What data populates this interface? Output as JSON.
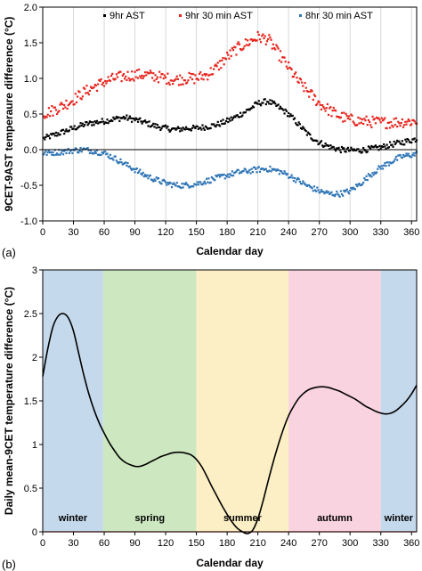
{
  "chart_data": [
    {
      "panel_label": "(a)",
      "type": "scatter",
      "xlabel": "Calendar day",
      "ylabel": "9CET-9AST temperaure difference (°C)",
      "xlim": [
        0,
        365
      ],
      "ylim": [
        -1.0,
        2.0
      ],
      "xticks": [
        0,
        30,
        60,
        90,
        120,
        150,
        180,
        210,
        240,
        270,
        300,
        330,
        360
      ],
      "yticks": [
        -1.0,
        -0.5,
        0.0,
        0.5,
        1.0,
        1.5,
        2.0
      ],
      "ytick_labels": [
        "-1.0",
        "-0.5",
        "0.0",
        "0.5",
        "1.0",
        "1.5",
        "2.0"
      ],
      "grid": "vertical",
      "legend_position": "top",
      "reference_line": 0,
      "series": [
        {
          "name": "9hr AST",
          "color": "#000000",
          "key_days": [
            0,
            10,
            20,
            30,
            40,
            50,
            60,
            70,
            80,
            90,
            100,
            110,
            120,
            130,
            140,
            150,
            160,
            170,
            180,
            190,
            200,
            210,
            220,
            230,
            240,
            250,
            260,
            270,
            280,
            290,
            300,
            310,
            320,
            330,
            340,
            350,
            365
          ],
          "key_values": [
            0.15,
            0.2,
            0.25,
            0.3,
            0.35,
            0.38,
            0.4,
            0.43,
            0.45,
            0.42,
            0.38,
            0.33,
            0.3,
            0.28,
            0.3,
            0.3,
            0.32,
            0.35,
            0.4,
            0.47,
            0.55,
            0.65,
            0.68,
            0.6,
            0.5,
            0.35,
            0.2,
            0.1,
            0.04,
            0.0,
            -0.01,
            -0.01,
            0.01,
            0.03,
            0.07,
            0.1,
            0.15
          ],
          "noise": 0.04
        },
        {
          "name": "9hr 30 min AST",
          "color": "#e8231b",
          "key_days": [
            0,
            10,
            20,
            30,
            40,
            50,
            60,
            70,
            80,
            90,
            100,
            110,
            120,
            130,
            140,
            150,
            160,
            170,
            180,
            190,
            200,
            210,
            220,
            230,
            240,
            250,
            260,
            270,
            280,
            290,
            300,
            310,
            320,
            330,
            340,
            350,
            365
          ],
          "key_values": [
            0.5,
            0.55,
            0.62,
            0.7,
            0.8,
            0.88,
            0.95,
            1.0,
            1.03,
            1.05,
            1.05,
            1.03,
            1.0,
            0.98,
            1.0,
            1.0,
            1.05,
            1.15,
            1.3,
            1.42,
            1.5,
            1.58,
            1.55,
            1.35,
            1.15,
            0.95,
            0.8,
            0.65,
            0.55,
            0.47,
            0.42,
            0.4,
            0.39,
            0.38,
            0.38,
            0.39,
            0.4
          ],
          "noise": 0.08
        },
        {
          "name": "8hr 30 min AST",
          "color": "#2e75b6",
          "key_days": [
            0,
            10,
            20,
            30,
            40,
            50,
            60,
            70,
            80,
            90,
            100,
            110,
            120,
            130,
            140,
            150,
            160,
            170,
            180,
            190,
            200,
            210,
            220,
            230,
            240,
            250,
            260,
            270,
            280,
            290,
            300,
            310,
            320,
            330,
            340,
            350,
            365
          ],
          "key_values": [
            -0.05,
            -0.04,
            -0.03,
            -0.01,
            0.0,
            -0.02,
            -0.05,
            -0.12,
            -0.2,
            -0.28,
            -0.36,
            -0.42,
            -0.47,
            -0.5,
            -0.5,
            -0.48,
            -0.44,
            -0.4,
            -0.36,
            -0.32,
            -0.3,
            -0.28,
            -0.27,
            -0.3,
            -0.36,
            -0.44,
            -0.52,
            -0.58,
            -0.62,
            -0.62,
            -0.58,
            -0.48,
            -0.35,
            -0.25,
            -0.17,
            -0.1,
            -0.06
          ],
          "noise": 0.04
        }
      ]
    },
    {
      "panel_label": "(b)",
      "type": "line",
      "xlabel": "Calendar day",
      "ylabel": "Daily mean-9CET temperature difference (°C)",
      "xlim": [
        0,
        365
      ],
      "ylim": [
        0,
        3
      ],
      "xticks": [
        0,
        30,
        60,
        90,
        120,
        150,
        180,
        210,
        240,
        270,
        300,
        330,
        360
      ],
      "yticks": [
        0,
        0.5,
        1,
        1.5,
        2,
        2.5,
        3
      ],
      "ytick_labels": [
        "0",
        "0.5",
        "1",
        "1.5",
        "2",
        "2.5",
        "3"
      ],
      "reference_line": 0,
      "reference_color": "#e03030",
      "line_color": "#000000",
      "seasons": [
        {
          "label": "winter",
          "start": 0,
          "end": 59,
          "color": "#c5d9ec"
        },
        {
          "label": "spring",
          "start": 59,
          "end": 150,
          "color": "#cde8c0"
        },
        {
          "label": "summer",
          "start": 150,
          "end": 240,
          "color": "#fcefc5"
        },
        {
          "label": "autumn",
          "start": 240,
          "end": 330,
          "color": "#f9d3df"
        },
        {
          "label": "winter",
          "start": 330,
          "end": 365,
          "color": "#c5d9ec"
        }
      ],
      "x": [
        0,
        5,
        10,
        15,
        20,
        25,
        30,
        35,
        40,
        45,
        50,
        55,
        60,
        65,
        70,
        75,
        80,
        85,
        90,
        95,
        100,
        105,
        110,
        115,
        120,
        125,
        130,
        135,
        140,
        145,
        150,
        155,
        160,
        165,
        170,
        175,
        180,
        185,
        190,
        195,
        200,
        205,
        210,
        215,
        220,
        225,
        230,
        235,
        240,
        245,
        250,
        255,
        260,
        265,
        270,
        275,
        280,
        285,
        290,
        295,
        300,
        305,
        310,
        315,
        320,
        325,
        330,
        335,
        340,
        345,
        350,
        355,
        360,
        365
      ],
      "values": [
        1.78,
        2.1,
        2.35,
        2.47,
        2.5,
        2.45,
        2.3,
        2.05,
        1.8,
        1.58,
        1.4,
        1.25,
        1.13,
        1.02,
        0.93,
        0.85,
        0.8,
        0.77,
        0.75,
        0.75,
        0.77,
        0.8,
        0.83,
        0.86,
        0.88,
        0.9,
        0.91,
        0.91,
        0.9,
        0.88,
        0.83,
        0.75,
        0.64,
        0.52,
        0.41,
        0.3,
        0.2,
        0.11,
        0.04,
        0.0,
        -0.02,
        0.02,
        0.15,
        0.35,
        0.58,
        0.8,
        1.0,
        1.18,
        1.33,
        1.44,
        1.53,
        1.59,
        1.63,
        1.65,
        1.66,
        1.66,
        1.65,
        1.63,
        1.61,
        1.58,
        1.55,
        1.52,
        1.48,
        1.44,
        1.41,
        1.38,
        1.36,
        1.35,
        1.36,
        1.39,
        1.44,
        1.5,
        1.58,
        1.68
      ]
    }
  ]
}
